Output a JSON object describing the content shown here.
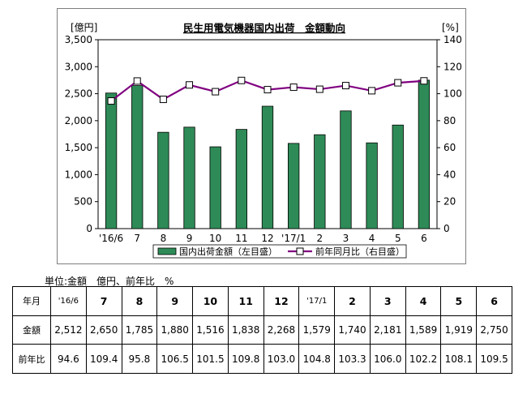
{
  "chart_data": {
    "type": "bar+line",
    "title": "民生用電気機器国内出荷　金額動向",
    "left_axis_unit": "[億円]",
    "right_axis_unit": "[%]",
    "categories": [
      "'16/6",
      "7",
      "8",
      "9",
      "10",
      "11",
      "12",
      "'17/1",
      "2",
      "3",
      "4",
      "5",
      "6"
    ],
    "left_ticks": [
      "0",
      "500",
      "1,000",
      "1,500",
      "2,000",
      "2,500",
      "3,000",
      "3,500"
    ],
    "right_ticks": [
      "0",
      "20",
      "40",
      "60",
      "80",
      "100",
      "120",
      "140"
    ],
    "ylim_left": [
      0,
      3500
    ],
    "ylim_right": [
      0,
      140
    ],
    "grid": false,
    "legend_position": "bottom",
    "series": [
      {
        "name": "国内出荷金額（左目盛）",
        "kind": "bar",
        "axis": "left",
        "color": "#2e8b57",
        "values": [
          2512,
          2650,
          1785,
          1880,
          1516,
          1838,
          2268,
          1579,
          1740,
          2181,
          1589,
          1919,
          2750
        ]
      },
      {
        "name": "前年同月比（右目盛）",
        "kind": "line",
        "axis": "right",
        "color": "#800080",
        "values": [
          94.6,
          109.4,
          95.8,
          106.5,
          101.5,
          109.8,
          103.0,
          104.8,
          103.3,
          106.0,
          102.2,
          108.1,
          109.5
        ]
      }
    ]
  },
  "unit_note": "単位:金額　億円、前年比　%",
  "table": {
    "header_label": "年月",
    "months": [
      "'16/6",
      "7",
      "8",
      "9",
      "10",
      "11",
      "12",
      "'17/1",
      "2",
      "3",
      "4",
      "5",
      "6"
    ],
    "rows": [
      {
        "label": "金額",
        "values": [
          "2,512",
          "2,650",
          "1,785",
          "1,880",
          "1,516",
          "1,838",
          "2,268",
          "1,579",
          "1,740",
          "2,181",
          "1,589",
          "1,919",
          "2,750"
        ]
      },
      {
        "label": "前年比",
        "values": [
          "94.6",
          "109.4",
          "95.8",
          "106.5",
          "101.5",
          "109.8",
          "103.0",
          "104.8",
          "103.3",
          "106.0",
          "102.2",
          "108.1",
          "109.5"
        ]
      }
    ]
  }
}
